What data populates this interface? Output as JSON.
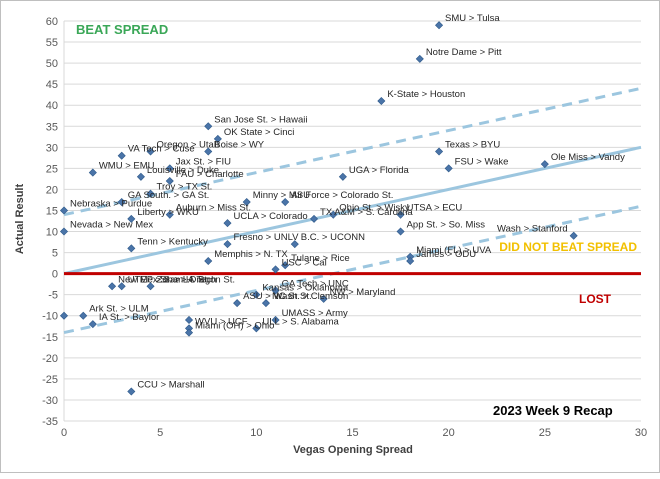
{
  "chart_data": {
    "type": "scatter",
    "title": "2023 Week 9 Recap",
    "xlabel": "Vegas Opening Spread",
    "ylabel": "Actual Result",
    "xlim": [
      0,
      30
    ],
    "ylim": [
      -35,
      60
    ],
    "xticks": [
      0,
      5,
      10,
      15,
      20,
      25,
      30
    ],
    "yticks": [
      -35,
      -30,
      -25,
      -20,
      -15,
      -10,
      -5,
      0,
      5,
      10,
      15,
      20,
      25,
      30,
      35,
      40,
      45,
      50,
      55,
      60
    ],
    "grid": true,
    "annotations": {
      "beat": "BEAT SPREAD",
      "did_not_beat": "DID NOT BEAT SPREAD",
      "lost": "LOST"
    },
    "colors": {
      "marker": "#4a74a8",
      "beat": "#3aa757",
      "did_not_beat": "#f2c000",
      "lost": "#c00000",
      "line": "#9cc6df"
    },
    "points": [
      {
        "label": "SMU > Tulsa",
        "x": 19.5,
        "y": 59
      },
      {
        "label": "Notre Dame > Pitt",
        "x": 18.5,
        "y": 51
      },
      {
        "label": "K-State > Houston",
        "x": 16.5,
        "y": 41
      },
      {
        "label": "San Jose St. > Hawaii",
        "x": 7.5,
        "y": 35
      },
      {
        "label": "Oregon > Utah",
        "x": 4.5,
        "y": 29
      },
      {
        "label": "OK State > Cinci",
        "x": 8,
        "y": 32
      },
      {
        "label": "VA Tech > Cuse",
        "x": 3,
        "y": 28
      },
      {
        "label": "Boise > WY",
        "x": 7.5,
        "y": 29
      },
      {
        "label": "Texas > BYU",
        "x": 19.5,
        "y": 29
      },
      {
        "label": "Ole Miss > Vandy",
        "x": 25,
        "y": 26
      },
      {
        "label": "FSU > Wake",
        "x": 20,
        "y": 25
      },
      {
        "label": "WMU > EMU",
        "x": 1.5,
        "y": 24
      },
      {
        "label": "Jax St. > FIU",
        "x": 5.5,
        "y": 25
      },
      {
        "label": "FAU > Charlotte",
        "x": 5.5,
        "y": 22
      },
      {
        "label": "UGA > Florida",
        "x": 14.5,
        "y": 23
      },
      {
        "label": "Louisville > Duke",
        "x": 4,
        "y": 23
      },
      {
        "label": "Troy > TX St.",
        "x": 4.5,
        "y": 19
      },
      {
        "label": "GA South. > GA St.",
        "x": 3,
        "y": 17
      },
      {
        "label": "Minny > MSU",
        "x": 9.5,
        "y": 17
      },
      {
        "label": "Air Force > Colorado St.",
        "x": 11.5,
        "y": 17
      },
      {
        "label": "UTSA > ECU",
        "x": 17.5,
        "y": 14
      },
      {
        "label": "Nebraska > Purdue",
        "x": 0,
        "y": 15
      },
      {
        "label": "Auburn > Miss St.",
        "x": 5.5,
        "y": 14
      },
      {
        "label": "Liberty > WKU",
        "x": 3.5,
        "y": 13
      },
      {
        "label": "UCLA > Colorado",
        "x": 8.5,
        "y": 12
      },
      {
        "label": "Ohio St. > Wisky",
        "x": 14,
        "y": 14
      },
      {
        "label": "TX A&M > S. Carolina",
        "x": 13,
        "y": 13
      },
      {
        "label": "App St. > So. Miss",
        "x": 17.5,
        "y": 10
      },
      {
        "label": "Wash > Stanford",
        "x": 26.5,
        "y": 9
      },
      {
        "label": "Nevada > New Mex",
        "x": 0,
        "y": 10
      },
      {
        "label": "Tenn > Kentucky",
        "x": 3.5,
        "y": 6
      },
      {
        "label": "Fresno > UNLV",
        "x": 8.5,
        "y": 7
      },
      {
        "label": "B.C. > UCONN",
        "x": 12,
        "y": 7
      },
      {
        "label": "Tulane > Rice",
        "x": 11.5,
        "y": 2
      },
      {
        "label": "USC > Cal",
        "x": 11,
        "y": 1
      },
      {
        "label": "Miami (FL) > UVA",
        "x": 18,
        "y": 4
      },
      {
        "label": "James > ODU",
        "x": 18,
        "y": 3
      },
      {
        "label": "Memphis > N. TX",
        "x": 7.5,
        "y": 3
      },
      {
        "label": "Zona > Oregon St.",
        "x": 4.5,
        "y": -3
      },
      {
        "label": "GA Tech > UNC",
        "x": 11,
        "y": -4
      },
      {
        "label": "New Mex St. > LA Tech",
        "x": 2.5,
        "y": -3
      },
      {
        "label": "UTEP > Sam H. St.",
        "x": 3,
        "y": -3
      },
      {
        "label": "Kansas > Oklahoma",
        "x": 10,
        "y": -5
      },
      {
        "label": "NW > Maryland",
        "x": 13.5,
        "y": -6
      },
      {
        "label": "Ark St. > ULM",
        "x": 1,
        "y": -10
      },
      {
        "label": "NC St. > Clemson",
        "x": 10.5,
        "y": -7
      },
      {
        "label": "ASU > Wash St.",
        "x": 9,
        "y": -7
      },
      {
        "label": "UMASS > Army",
        "x": 11,
        "y": -11
      },
      {
        "label": "IA St. > Baylor",
        "x": 1.5,
        "y": -12
      },
      {
        "label": "WVU > UCF",
        "x": 6.5,
        "y": -13
      },
      {
        "label": "ULL > S. Alabama",
        "x": 10,
        "y": -13
      },
      {
        "label": "Miami (OH) > Ohio",
        "x": 6.5,
        "y": -14
      },
      {
        "label": "CCU > Marshall",
        "x": 3.5,
        "y": -28
      },
      {
        "label": "",
        "x": 0,
        "y": -10
      },
      {
        "label": "",
        "x": 6.5,
        "y": -11
      }
    ]
  }
}
